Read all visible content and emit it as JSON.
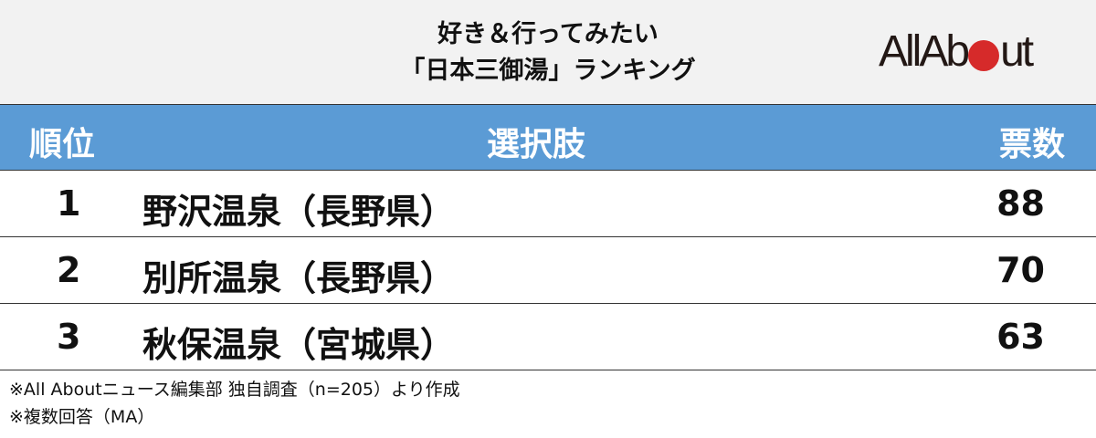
{
  "header": {
    "title_line1": "好き＆行ってみたい",
    "title_line2": "「日本三御湯」ランキング",
    "logo": {
      "text_before": "AllAb",
      "text_after": "ut",
      "brand": "All About",
      "dot_color": "#d62a2a"
    }
  },
  "table": {
    "header_color": "#5b9bd5",
    "columns": [
      "順位",
      "選択肢",
      "票数"
    ],
    "rows": [
      {
        "rank": "1",
        "name": "野沢温泉（長野県）",
        "votes": "88"
      },
      {
        "rank": "2",
        "name": "別所温泉（長野県）",
        "votes": "70"
      },
      {
        "rank": "3",
        "name": "秋保温泉（宮城県）",
        "votes": "63"
      }
    ]
  },
  "footer": {
    "note1": "※All Aboutニュース編集部 独自調査（n=205）より作成",
    "note2": "※複数回答（MA）"
  }
}
